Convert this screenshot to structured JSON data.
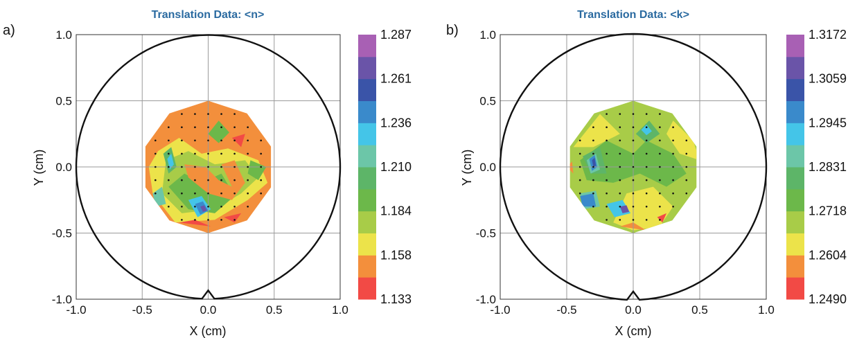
{
  "chart_data": [
    {
      "type": "heatmap",
      "panel_label": "a)",
      "title": "Translation Data:  <n>",
      "xlabel": "X (cm)",
      "ylabel": "Y (cm)",
      "xlim": [
        -1.0,
        1.0
      ],
      "ylim": [
        -1.0,
        1.0
      ],
      "x_ticks": [
        "-1.0",
        "-0.5",
        "0.0",
        "0.5",
        "1.0"
      ],
      "y_ticks": [
        "1.0",
        "0.5",
        "0.0",
        "-0.5",
        "-1.0"
      ],
      "grid": true,
      "colorbar": {
        "labels": [
          "1.287",
          "1.261",
          "1.236",
          "1.210",
          "1.184",
          "1.158",
          "1.133"
        ],
        "colors": [
          "#f24a45",
          "#f38f3c",
          "#ece34a",
          "#a8cc48",
          "#6cb84a",
          "#5db568",
          "#6cc6a8",
          "#44c5e8",
          "#3a8acb",
          "#3a54a8",
          "#6a54a8",
          "#a860b4"
        ]
      },
      "colors": {
        "background": "#f38f3c",
        "patches": [
          {
            "color": "#ece34a",
            "points": [
              [
                -0.38,
                0.12
              ],
              [
                -0.22,
                0.22
              ],
              [
                -0.05,
                0.1
              ],
              [
                0.15,
                0.14
              ],
              [
                0.38,
                0.05
              ],
              [
                0.45,
                -0.12
              ],
              [
                0.3,
                -0.25
              ],
              [
                0.05,
                -0.4
              ],
              [
                -0.25,
                -0.42
              ],
              [
                -0.42,
                -0.2
              ],
              [
                -0.45,
                0.0
              ]
            ]
          },
          {
            "color": "#a8cc48",
            "points": [
              [
                -0.32,
                0.05
              ],
              [
                -0.15,
                0.12
              ],
              [
                0.05,
                0.02
              ],
              [
                0.28,
                0.05
              ],
              [
                0.38,
                -0.08
              ],
              [
                0.25,
                -0.2
              ],
              [
                0.05,
                -0.32
              ],
              [
                -0.2,
                -0.35
              ],
              [
                -0.35,
                -0.2
              ]
            ]
          },
          {
            "color": "#6cb84a",
            "points": [
              [
                -0.3,
                -0.15
              ],
              [
                -0.18,
                -0.05
              ],
              [
                -0.05,
                -0.12
              ],
              [
                0.1,
                -0.05
              ],
              [
                0.2,
                -0.22
              ],
              [
                0.05,
                -0.35
              ],
              [
                -0.15,
                -0.32
              ]
            ]
          },
          {
            "color": "#6cb84a",
            "points": [
              [
                0.0,
                0.25
              ],
              [
                0.08,
                0.35
              ],
              [
                0.16,
                0.26
              ],
              [
                0.08,
                0.18
              ]
            ]
          },
          {
            "color": "#6cb84a",
            "points": [
              [
                0.32,
                0.05
              ],
              [
                0.44,
                0.0
              ],
              [
                0.38,
                -0.1
              ],
              [
                0.3,
                -0.05
              ]
            ]
          },
          {
            "color": "#5db568",
            "points": [
              [
                -0.34,
                0.1
              ],
              [
                -0.28,
                0.15
              ],
              [
                -0.24,
                0.0
              ],
              [
                -0.3,
                -0.05
              ]
            ]
          },
          {
            "color": "#6cc6a8",
            "points": [
              [
                -0.42,
                -0.2
              ],
              [
                -0.35,
                -0.15
              ],
              [
                -0.32,
                -0.28
              ],
              [
                -0.4,
                -0.3
              ]
            ]
          },
          {
            "color": "#44c5e8",
            "points": [
              [
                -0.31,
                0.06
              ],
              [
                -0.28,
                0.1
              ],
              [
                -0.26,
                0.02
              ],
              [
                -0.29,
                -0.02
              ]
            ]
          },
          {
            "color": "#44c5e8",
            "points": [
              [
                -0.15,
                -0.25
              ],
              [
                -0.05,
                -0.22
              ],
              [
                0.02,
                -0.32
              ],
              [
                -0.08,
                -0.38
              ]
            ]
          },
          {
            "color": "#3a8acb",
            "points": [
              [
                -0.1,
                -0.28
              ],
              [
                -0.04,
                -0.26
              ],
              [
                0.0,
                -0.33
              ],
              [
                -0.06,
                -0.36
              ]
            ]
          },
          {
            "color": "#6a54a8",
            "points": [
              [
                -0.06,
                -0.3
              ],
              [
                -0.03,
                -0.29
              ],
              [
                -0.01,
                -0.33
              ],
              [
                -0.04,
                -0.34
              ]
            ]
          },
          {
            "color": "#f38f3c",
            "points": [
              [
                -0.18,
                0.02
              ],
              [
                -0.02,
                0.0
              ],
              [
                0.08,
                -0.1
              ],
              [
                0.18,
                -0.15
              ],
              [
                0.1,
                0.02
              ],
              [
                0.2,
                0.05
              ],
              [
                0.28,
                -0.12
              ],
              [
                0.18,
                -0.25
              ],
              [
                0.0,
                -0.2
              ],
              [
                -0.15,
                -0.08
              ]
            ]
          },
          {
            "color": "#f24a45",
            "points": [
              [
                0.18,
                0.22
              ],
              [
                0.28,
                0.25
              ],
              [
                0.25,
                0.15
              ]
            ]
          },
          {
            "color": "#f24a45",
            "points": [
              [
                -0.22,
                -0.42
              ],
              [
                0.02,
                -0.45
              ],
              [
                -0.1,
                -0.4
              ]
            ]
          },
          {
            "color": "#f24a45",
            "points": [
              [
                0.12,
                -0.38
              ],
              [
                0.25,
                -0.35
              ],
              [
                0.2,
                -0.42
              ]
            ]
          }
        ]
      }
    },
    {
      "type": "heatmap",
      "panel_label": "b)",
      "title": "Translation Data:  <k>",
      "xlabel": "X (cm)",
      "ylabel": "Y (cm)",
      "xlim": [
        -1.0,
        1.0
      ],
      "ylim": [
        -1.0,
        1.0
      ],
      "x_ticks": [
        "-1.0",
        "-0.5",
        "0.0",
        "0.5",
        "1.0"
      ],
      "y_ticks": [
        "1.0",
        "0.5",
        "0.0",
        "-0.5",
        "-1.0"
      ],
      "grid": true,
      "colorbar": {
        "labels": [
          "1.3172",
          "1.3059",
          "1.2945",
          "1.2831",
          "1.2718",
          "1.2604",
          "1.2490"
        ],
        "colors": [
          "#f24a45",
          "#f38f3c",
          "#ece34a",
          "#a8cc48",
          "#6cb84a",
          "#5db568",
          "#6cc6a8",
          "#44c5e8",
          "#3a8acb",
          "#3a54a8",
          "#6a54a8",
          "#a860b4"
        ]
      },
      "colors": {
        "background": "#a8cc48",
        "patches": [
          {
            "color": "#ece34a",
            "points": [
              [
                -0.45,
                0.15
              ],
              [
                -0.25,
                0.4
              ],
              [
                -0.1,
                0.25
              ],
              [
                -0.3,
                0.15
              ]
            ]
          },
          {
            "color": "#ece34a",
            "points": [
              [
                0.3,
                0.35
              ],
              [
                0.45,
                0.2
              ],
              [
                0.5,
                0.05
              ],
              [
                0.35,
                0.1
              ],
              [
                0.25,
                0.25
              ]
            ]
          },
          {
            "color": "#ece34a",
            "points": [
              [
                -0.05,
                -0.2
              ],
              [
                0.15,
                -0.15
              ],
              [
                0.3,
                -0.3
              ],
              [
                0.2,
                -0.45
              ],
              [
                0.0,
                -0.48
              ],
              [
                -0.15,
                -0.42
              ]
            ]
          },
          {
            "color": "#6cb84a",
            "points": [
              [
                -0.4,
                0.05
              ],
              [
                -0.2,
                0.2
              ],
              [
                0.0,
                0.1
              ],
              [
                0.1,
                0.2
              ],
              [
                0.3,
                0.1
              ],
              [
                0.4,
                -0.05
              ],
              [
                0.25,
                -0.15
              ],
              [
                0.05,
                -0.05
              ],
              [
                -0.15,
                -0.12
              ],
              [
                -0.35,
                -0.1
              ]
            ]
          },
          {
            "color": "#5db568",
            "points": [
              [
                -0.38,
                0.08
              ],
              [
                -0.25,
                0.15
              ],
              [
                -0.2,
                -0.05
              ],
              [
                -0.32,
                -0.05
              ]
            ]
          },
          {
            "color": "#5db568",
            "points": [
              [
                0.02,
                0.25
              ],
              [
                0.12,
                0.35
              ],
              [
                0.2,
                0.25
              ],
              [
                0.1,
                0.18
              ]
            ]
          },
          {
            "color": "#6cc6a8",
            "points": [
              [
                -0.35,
                0.05
              ],
              [
                -0.28,
                0.1
              ],
              [
                -0.25,
                -0.02
              ],
              [
                -0.32,
                -0.05
              ]
            ]
          },
          {
            "color": "#6cc6a8",
            "points": [
              [
                -0.4,
                -0.2
              ],
              [
                -0.28,
                -0.18
              ],
              [
                -0.25,
                -0.3
              ],
              [
                -0.38,
                -0.32
              ]
            ]
          },
          {
            "color": "#44c5e8",
            "points": [
              [
                0.06,
                0.28
              ],
              [
                0.1,
                0.32
              ],
              [
                0.14,
                0.27
              ],
              [
                0.1,
                0.24
              ]
            ]
          },
          {
            "color": "#44c5e8",
            "points": [
              [
                -0.2,
                -0.28
              ],
              [
                -0.08,
                -0.25
              ],
              [
                -0.02,
                -0.35
              ],
              [
                -0.14,
                -0.38
              ]
            ]
          },
          {
            "color": "#3a8acb",
            "points": [
              [
                -0.33,
                0.06
              ],
              [
                -0.29,
                0.09
              ],
              [
                -0.27,
                0.0
              ],
              [
                -0.31,
                -0.03
              ]
            ]
          },
          {
            "color": "#3a8acb",
            "points": [
              [
                -0.4,
                -0.22
              ],
              [
                -0.3,
                -0.2
              ],
              [
                -0.28,
                -0.3
              ],
              [
                -0.38,
                -0.3
              ]
            ]
          },
          {
            "color": "#3a54a8",
            "points": [
              [
                -0.31,
                0.05
              ],
              [
                -0.29,
                0.07
              ],
              [
                -0.28,
                0.01
              ],
              [
                -0.3,
                0.0
              ]
            ]
          },
          {
            "color": "#6a54a8",
            "points": [
              [
                -0.1,
                -0.3
              ],
              [
                -0.05,
                -0.29
              ],
              [
                -0.03,
                -0.34
              ],
              [
                -0.08,
                -0.35
              ]
            ]
          },
          {
            "color": "#f38f3c",
            "points": [
              [
                -0.5,
                0.0
              ],
              [
                -0.46,
                0.04
              ],
              [
                -0.45,
                -0.05
              ]
            ]
          },
          {
            "color": "#f38f3c",
            "points": [
              [
                -0.1,
                -0.45
              ],
              [
                0.1,
                -0.48
              ],
              [
                0.0,
                -0.42
              ]
            ]
          },
          {
            "color": "#f24a45",
            "points": [
              [
                0.18,
                -0.38
              ],
              [
                0.25,
                -0.35
              ],
              [
                0.22,
                -0.42
              ]
            ]
          }
        ]
      }
    }
  ],
  "measurement_points": [
    [
      -0.2,
      0.4
    ],
    [
      -0.1,
      0.4
    ],
    [
      0.0,
      0.4
    ],
    [
      0.1,
      0.4
    ],
    [
      0.2,
      0.4
    ],
    [
      -0.3,
      0.3
    ],
    [
      -0.2,
      0.3
    ],
    [
      -0.1,
      0.3
    ],
    [
      0.0,
      0.3
    ],
    [
      0.1,
      0.3
    ],
    [
      0.2,
      0.3
    ],
    [
      0.3,
      0.3
    ],
    [
      -0.4,
      0.2
    ],
    [
      -0.3,
      0.2
    ],
    [
      -0.2,
      0.2
    ],
    [
      -0.1,
      0.2
    ],
    [
      0.0,
      0.2
    ],
    [
      0.1,
      0.2
    ],
    [
      0.2,
      0.2
    ],
    [
      0.3,
      0.2
    ],
    [
      0.4,
      0.2
    ],
    [
      -0.4,
      0.1
    ],
    [
      -0.3,
      0.1
    ],
    [
      -0.2,
      0.1
    ],
    [
      -0.1,
      0.1
    ],
    [
      0.0,
      0.1
    ],
    [
      0.1,
      0.1
    ],
    [
      0.2,
      0.1
    ],
    [
      0.3,
      0.1
    ],
    [
      0.4,
      0.1
    ],
    [
      -0.4,
      0.0
    ],
    [
      -0.3,
      0.0
    ],
    [
      -0.2,
      0.0
    ],
    [
      -0.1,
      0.0
    ],
    [
      0.0,
      0.0
    ],
    [
      0.1,
      0.0
    ],
    [
      0.2,
      0.0
    ],
    [
      0.3,
      0.0
    ],
    [
      0.4,
      0.0
    ],
    [
      -0.4,
      -0.1
    ],
    [
      -0.3,
      -0.1
    ],
    [
      -0.2,
      -0.1
    ],
    [
      -0.1,
      -0.1
    ],
    [
      0.0,
      -0.1
    ],
    [
      0.1,
      -0.1
    ],
    [
      0.2,
      -0.1
    ],
    [
      0.3,
      -0.1
    ],
    [
      0.4,
      -0.1
    ],
    [
      -0.4,
      -0.2
    ],
    [
      -0.3,
      -0.2
    ],
    [
      -0.2,
      -0.2
    ],
    [
      -0.1,
      -0.2
    ],
    [
      0.0,
      -0.2
    ],
    [
      0.1,
      -0.2
    ],
    [
      0.2,
      -0.2
    ],
    [
      0.3,
      -0.2
    ],
    [
      0.4,
      -0.2
    ],
    [
      -0.3,
      -0.3
    ],
    [
      -0.2,
      -0.3
    ],
    [
      -0.1,
      -0.3
    ],
    [
      0.0,
      -0.3
    ],
    [
      0.1,
      -0.3
    ],
    [
      0.2,
      -0.3
    ],
    [
      0.3,
      -0.3
    ],
    [
      -0.2,
      -0.4
    ],
    [
      -0.1,
      -0.4
    ],
    [
      0.0,
      -0.4
    ],
    [
      0.1,
      -0.4
    ],
    [
      0.2,
      -0.4
    ]
  ]
}
